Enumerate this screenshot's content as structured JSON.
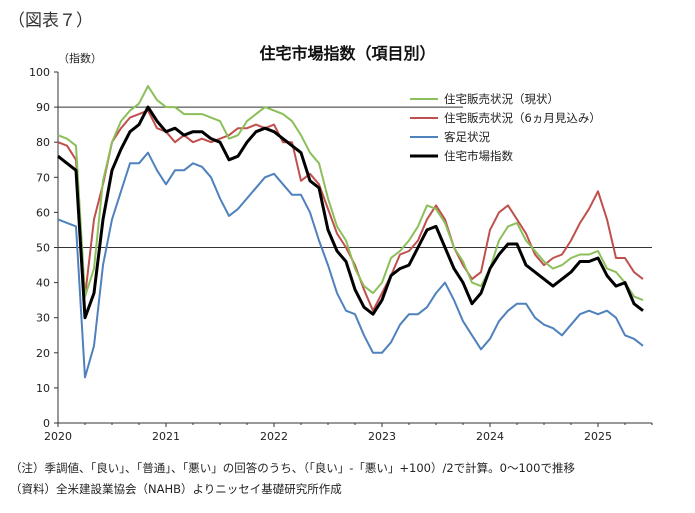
{
  "figure_label": "（図表７）",
  "notes": {
    "note": "（注）季調値、「良い」、「普通」、「悪い」の回答のうち、（「良い」-「悪い」+100）/2で計算。0～100で推移",
    "source": "（資料）全米建設業協会（NAHB）よりニッセイ基礎研究所作成"
  },
  "colors": {
    "current_sales": "#8cbf5a",
    "future_sales": "#c0504d",
    "traffic": "#4f81bd",
    "hmi": "#000000"
  },
  "chart_data": {
    "type": "line",
    "title": "住宅市場指数（項目別）",
    "ylabel": "（指数）",
    "xlabel": "",
    "ylim": [
      0,
      100
    ],
    "yticks": [
      0,
      10,
      20,
      30,
      40,
      50,
      60,
      70,
      80,
      90,
      100
    ],
    "xticks": [
      "2020",
      "2021",
      "2022",
      "2023",
      "2024",
      "2025"
    ],
    "x_start": "2020-01",
    "x": [
      "2020-01",
      "2020-02",
      "2020-03",
      "2020-04",
      "2020-05",
      "2020-06",
      "2020-07",
      "2020-08",
      "2020-09",
      "2020-10",
      "2020-11",
      "2020-12",
      "2021-01",
      "2021-02",
      "2021-03",
      "2021-04",
      "2021-05",
      "2021-06",
      "2021-07",
      "2021-08",
      "2021-09",
      "2021-10",
      "2021-11",
      "2021-12",
      "2022-01",
      "2022-02",
      "2022-03",
      "2022-04",
      "2022-05",
      "2022-06",
      "2022-07",
      "2022-08",
      "2022-09",
      "2022-10",
      "2022-11",
      "2022-12",
      "2023-01",
      "2023-02",
      "2023-03",
      "2023-04",
      "2023-05",
      "2023-06",
      "2023-07",
      "2023-08",
      "2023-09",
      "2023-10",
      "2023-11",
      "2023-12",
      "2024-01",
      "2024-02",
      "2024-03",
      "2024-04",
      "2024-05",
      "2024-06",
      "2024-07",
      "2024-08",
      "2024-09",
      "2024-10",
      "2024-11",
      "2024-12",
      "2025-01",
      "2025-02",
      "2025-03",
      "2025-04",
      "2025-05",
      "2025-06"
    ],
    "grid": "horizontal",
    "legend_position": "top-right",
    "series": [
      {
        "name": "住宅販売状況（現状）",
        "color_key": "current_sales",
        "width": 2,
        "values": [
          82,
          81,
          79,
          36,
          44,
          69,
          80,
          86,
          89,
          91,
          96,
          92,
          90,
          90,
          88,
          88,
          88,
          87,
          86,
          81,
          82,
          86,
          88,
          90,
          89,
          88,
          86,
          82,
          77,
          74,
          64,
          56,
          52,
          44,
          39,
          37,
          40,
          47,
          49,
          52,
          56,
          62,
          61,
          57,
          50,
          46,
          40,
          39,
          44,
          52,
          56,
          57,
          52,
          49,
          46,
          44,
          45,
          47,
          48,
          48,
          49,
          44,
          43,
          40,
          36,
          35
        ]
      },
      {
        "name": "住宅販売状況（6ヵ月見込み）",
        "color_key": "future_sales",
        "width": 2,
        "values": [
          80,
          79,
          75,
          36,
          58,
          68,
          80,
          84,
          87,
          88,
          89,
          84,
          83,
          80,
          82,
          80,
          81,
          80,
          81,
          82,
          84,
          84,
          85,
          84,
          85,
          80,
          80,
          69,
          71,
          68,
          61,
          54,
          50,
          45,
          38,
          32,
          37,
          42,
          48,
          49,
          52,
          58,
          62,
          58,
          50,
          45,
          41,
          43,
          55,
          60,
          62,
          58,
          54,
          48,
          45,
          47,
          48,
          52,
          57,
          61,
          66,
          58,
          47,
          47,
          43,
          41
        ]
      },
      {
        "name": "客足状況",
        "color_key": "traffic",
        "width": 2,
        "values": [
          58,
          57,
          56,
          13,
          22,
          45,
          58,
          66,
          74,
          74,
          77,
          72,
          68,
          72,
          72,
          74,
          73,
          70,
          64,
          59,
          61,
          64,
          67,
          70,
          71,
          68,
          65,
          65,
          60,
          52,
          45,
          37,
          32,
          31,
          25,
          20,
          20,
          23,
          28,
          31,
          31,
          33,
          37,
          40,
          35,
          29,
          25,
          21,
          24,
          29,
          32,
          34,
          34,
          30,
          28,
          27,
          25,
          28,
          31,
          32,
          31,
          32,
          30,
          25,
          24,
          22
        ]
      },
      {
        "name": "住宅市場指数",
        "color_key": "hmi",
        "width": 3,
        "values": [
          76,
          74,
          72,
          30,
          37,
          58,
          72,
          78,
          83,
          85,
          90,
          86,
          83,
          84,
          82,
          83,
          83,
          81,
          80,
          75,
          76,
          80,
          83,
          84,
          83,
          81,
          79,
          77,
          69,
          67,
          55,
          49,
          46,
          38,
          33,
          31,
          35,
          42,
          44,
          45,
          50,
          55,
          56,
          50,
          44,
          40,
          34,
          37,
          44,
          48,
          51,
          51,
          45,
          43,
          41,
          39,
          41,
          43,
          46,
          46,
          47,
          42,
          39,
          40,
          34,
          32
        ]
      }
    ],
    "reference_lines": [
      50,
      90
    ]
  }
}
